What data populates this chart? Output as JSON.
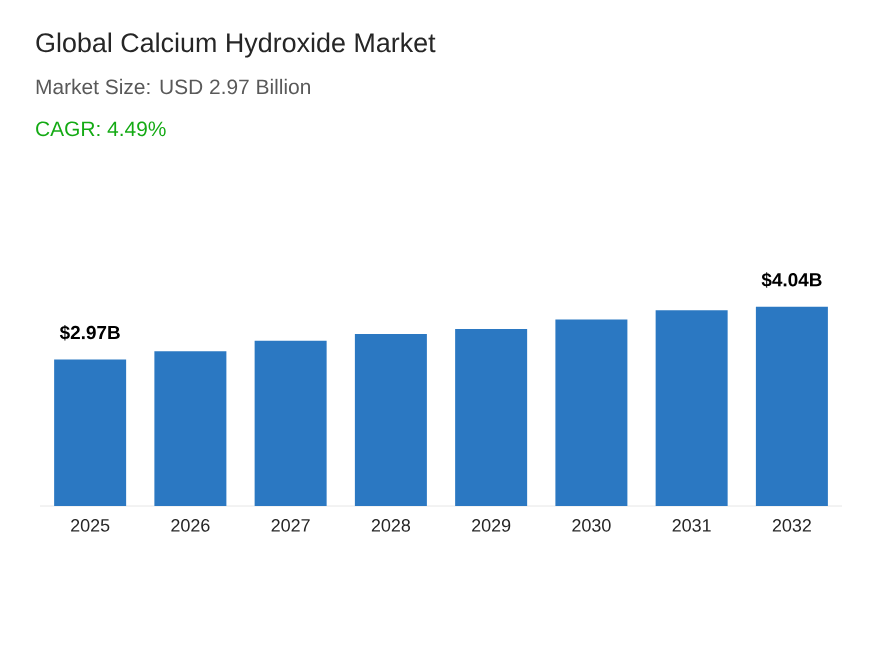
{
  "chart_data": {
    "type": "bar",
    "title": "Global Calcium Hydroxide Market",
    "subtitle": "Market Size: USD 2.97 Billion",
    "annotations": [
      "CAGR: 4.49%"
    ],
    "categories": [
      "2025",
      "2026",
      "2027",
      "2028",
      "2029",
      "2030",
      "2031",
      "2032"
    ],
    "values": [
      2.97,
      3.14,
      3.35,
      3.49,
      3.59,
      3.78,
      3.97,
      4.04
    ],
    "value_labels": [
      "$2.97B",
      null,
      null,
      null,
      null,
      null,
      null,
      "$4.04B"
    ],
    "color": "#2b78c2"
  }
}
